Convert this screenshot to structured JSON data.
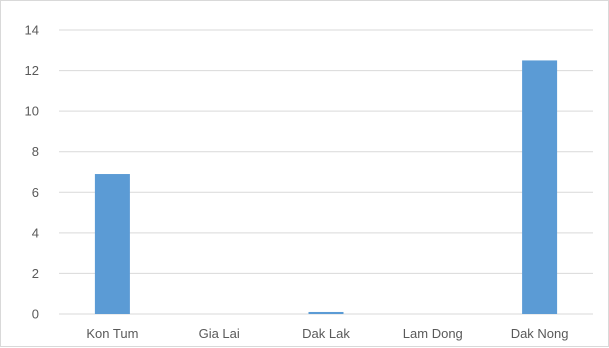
{
  "chart_data": {
    "type": "bar",
    "title": "",
    "xlabel": "",
    "ylabel": "",
    "categories": [
      "Kon Tum",
      "Gia Lai",
      "Dak Lak",
      "Lam Dong",
      "Dak Nong"
    ],
    "values": [
      6.9,
      0,
      0.1,
      0,
      12.5
    ],
    "ylim": [
      0,
      14
    ],
    "yticks": [
      "0",
      "2",
      "4",
      "6",
      "8",
      "10",
      "12",
      "14"
    ],
    "grid": true,
    "legend": "none",
    "bar_color": "#5b9bd5",
    "grid_color": "#d9d9d9"
  }
}
